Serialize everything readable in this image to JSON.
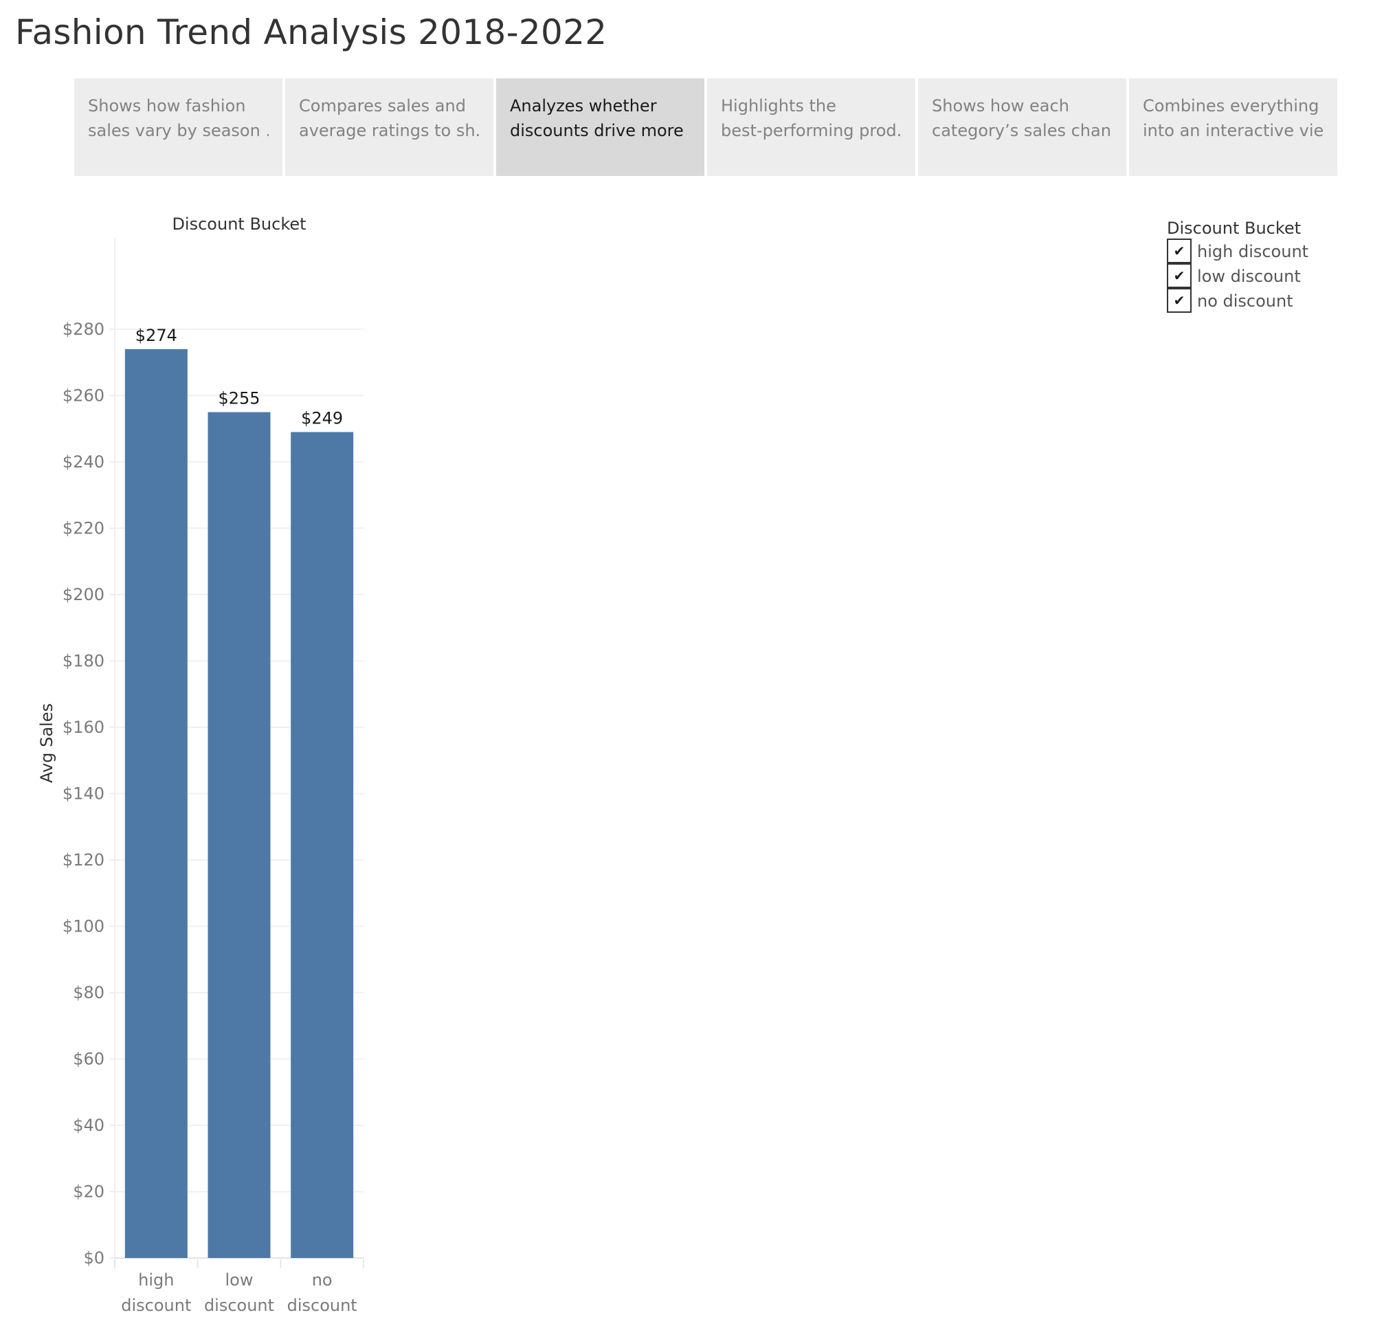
{
  "page": {
    "title": "Fashion Trend Analysis 2018-2022"
  },
  "story": {
    "points": [
      {
        "line1": "Shows how fashion",
        "line2": "sales vary by season ..",
        "active": false
      },
      {
        "line1": "Compares sales and",
        "line2": "average ratings to sh..",
        "active": false
      },
      {
        "line1": "Analyzes whether",
        "line2": "discounts drive more ..",
        "active": true
      },
      {
        "line1": "Highlights the",
        "line2": "best-performing prod..",
        "active": false
      },
      {
        "line1": "Shows how each",
        "line2": "category’s sales chan..",
        "active": false
      },
      {
        "line1": "Combines everything",
        "line2": "into an interactive vie..",
        "active": false
      }
    ]
  },
  "legend": {
    "title": "Discount Bucket",
    "items": [
      {
        "label": "high discount",
        "checked": true,
        "check_icon": "checkmark-icon"
      },
      {
        "label": "low discount",
        "checked": true,
        "check_icon": "checkmark-icon"
      },
      {
        "label": "no discount",
        "checked": true,
        "check_icon": "checkmark-icon"
      }
    ]
  },
  "colors": {
    "bar": "#4e79a7",
    "active_tab": "#d9d9d9",
    "inactive_tab": "#ededed"
  },
  "chart_data": {
    "type": "bar",
    "title": "Discount Bucket",
    "xlabel": "",
    "ylabel": "Avg Sales",
    "categories": [
      {
        "line1": "high",
        "line2": "discount"
      },
      {
        "line1": "low",
        "line2": "discount"
      },
      {
        "line1": "no",
        "line2": "discount"
      }
    ],
    "values": [
      274,
      255,
      249
    ],
    "value_labels": [
      "$274",
      "$255",
      "$249"
    ],
    "yticks": [
      0,
      20,
      40,
      60,
      80,
      100,
      120,
      140,
      160,
      180,
      200,
      220,
      240,
      260,
      280
    ],
    "ytick_labels": [
      "$0",
      "$20",
      "$40",
      "$60",
      "$80",
      "$100",
      "$120",
      "$140",
      "$160",
      "$180",
      "$200",
      "$220",
      "$240",
      "$260",
      "$280"
    ],
    "ylim": [
      0,
      280
    ],
    "grid": true,
    "bar_color": "#4e79a7"
  }
}
